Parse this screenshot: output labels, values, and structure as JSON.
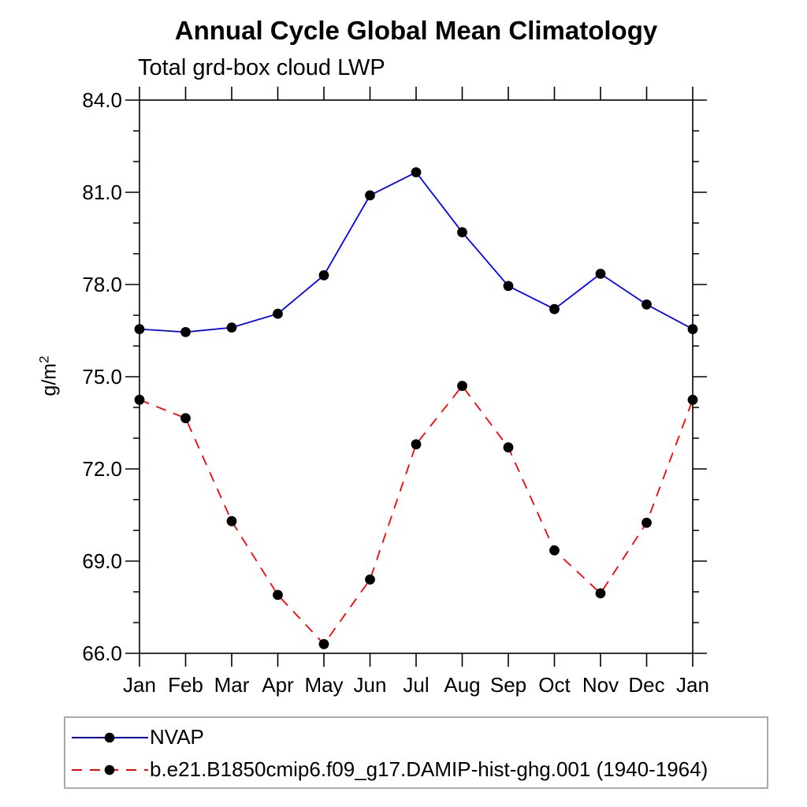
{
  "page": {
    "background": "#ffffff"
  },
  "colors": {
    "axis": "#000000",
    "text": "#000000",
    "legend_border": "#aaaaaa",
    "nvap_line": "#0000ff",
    "model_line": "#ff0000",
    "marker": "#000000"
  },
  "ylabel": {
    "base": "g/m",
    "exponent": "2"
  },
  "chart_data": {
    "type": "line",
    "title": "Annual Cycle Global Mean Climatology",
    "subtitle": "Total grd-box cloud LWP",
    "ylabel": "g/m²",
    "xlabel": "",
    "x_tick_labels": [
      "Jan",
      "Feb",
      "Mar",
      "Apr",
      "May",
      "Jun",
      "Jul",
      "Aug",
      "Sep",
      "Oct",
      "Nov",
      "Dec",
      "Jan"
    ],
    "ylim": [
      66,
      84
    ],
    "y_ticks": [
      66,
      69,
      72,
      75,
      78,
      81,
      84
    ],
    "y_tick_labels": [
      "66.0",
      "69.0",
      "72.0",
      "75.0",
      "78.0",
      "81.0",
      "84.0"
    ],
    "y_minor_tick_interval": 1,
    "grid": false,
    "legend_position": "bottom-left",
    "series": [
      {
        "name": "NVAP",
        "color": "#0000ff",
        "line_style": "solid",
        "marker": "filled-circle",
        "marker_color": "#000000",
        "values": [
          76.55,
          76.45,
          76.6,
          77.05,
          78.3,
          80.9,
          81.65,
          79.7,
          77.95,
          77.2,
          78.35,
          77.35,
          76.55
        ]
      },
      {
        "name": "b.e21.B1850cmip6.f09_g17.DAMIP-hist-ghg.001 (1940-1964)",
        "color": "#ff0000",
        "line_style": "dashed",
        "marker": "filled-circle",
        "marker_color": "#000000",
        "values": [
          74.25,
          73.65,
          70.3,
          67.9,
          66.3,
          68.4,
          72.8,
          74.7,
          72.7,
          69.35,
          67.95,
          70.25,
          74.25
        ]
      }
    ]
  }
}
